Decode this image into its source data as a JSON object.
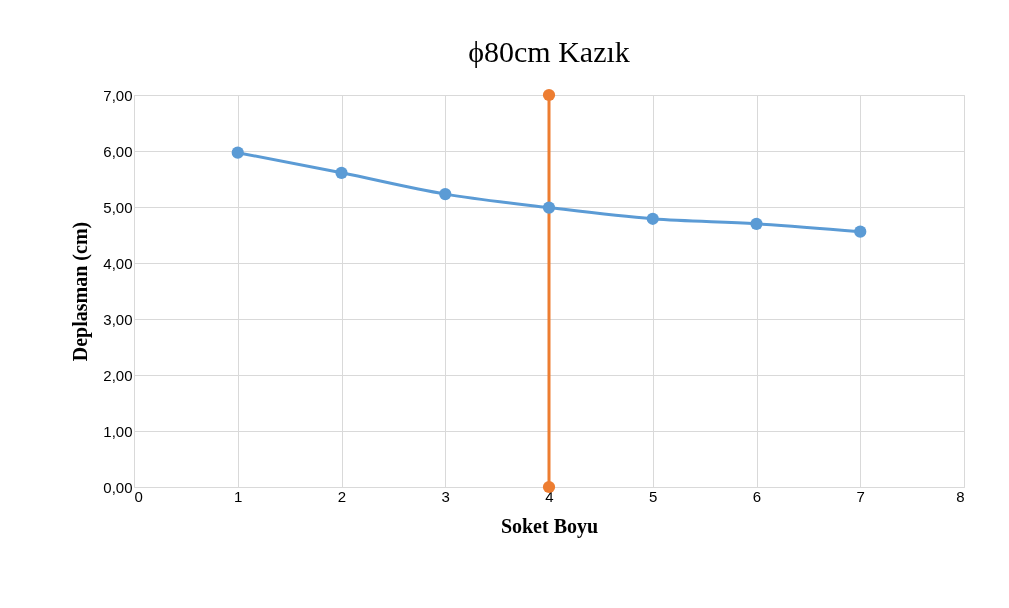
{
  "chart_data": {
    "type": "line",
    "title": "ϕ80cm Kazık",
    "xlabel": "Soket Boyu",
    "ylabel": "Deplasman (cm)",
    "series": [
      {
        "color": "#5b9bd5",
        "x": [
          1,
          2,
          3,
          4,
          5,
          6,
          7
        ],
        "values": [
          5.97,
          5.61,
          5.23,
          4.99,
          4.79,
          4.7,
          4.56
        ]
      },
      {
        "color": "#ed7d31",
        "x": [
          4,
          4
        ],
        "values": [
          0,
          7
        ]
      }
    ],
    "xlim": [
      0,
      8
    ],
    "xticks": [
      0,
      1,
      2,
      3,
      4,
      5,
      6,
      7,
      8
    ],
    "ylim": [
      0,
      7
    ],
    "yticks": [
      {
        "value": 0,
        "label": "0,00"
      },
      {
        "value": 1,
        "label": "1,00"
      },
      {
        "value": 2,
        "label": "2,00"
      },
      {
        "value": 3,
        "label": "3,00"
      },
      {
        "value": 4,
        "label": "4,00"
      },
      {
        "value": 5,
        "label": "5,00"
      },
      {
        "value": 6,
        "label": "6,00"
      },
      {
        "value": 7,
        "label": "7,00"
      }
    ],
    "grid": true,
    "marker": "circle",
    "line_style": "solid"
  }
}
